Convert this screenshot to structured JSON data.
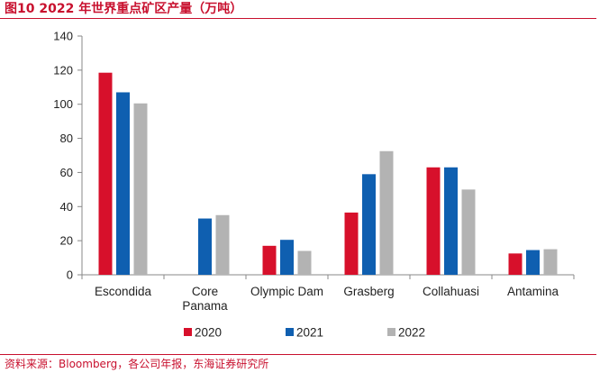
{
  "header": {
    "title": "图10  2022 年世界重点矿区产量（万吨）"
  },
  "footer": {
    "source": "资料来源：Bloomberg，各公司年报，东海证券研究所"
  },
  "colors": {
    "accent": "#c8102e",
    "s2020": "#d7102b",
    "s2021": "#0f5fb0",
    "s2022": "#b3b3b3"
  },
  "chart_data": {
    "type": "bar",
    "title": "2022 年世界重点矿区产量（万吨）",
    "xlabel": "",
    "ylabel": "",
    "ylim": [
      0,
      140
    ],
    "yticks": [
      0,
      20,
      40,
      60,
      80,
      100,
      120,
      140
    ],
    "categories": [
      [
        "Escondida"
      ],
      [
        "Core",
        "Panama"
      ],
      [
        "Olympic Dam"
      ],
      [
        "Grasberg"
      ],
      [
        "Collahuasi"
      ],
      [
        "Antamina"
      ]
    ],
    "series": [
      {
        "name": "2020",
        "color": "#d7102b",
        "values": [
          118.5,
          0,
          17,
          36.5,
          63,
          12.5
        ]
      },
      {
        "name": "2021",
        "color": "#0f5fb0",
        "values": [
          107,
          33,
          20.5,
          59,
          63,
          14.5
        ]
      },
      {
        "name": "2022",
        "color": "#b3b3b3",
        "values": [
          100.5,
          35,
          14,
          72.5,
          50,
          15
        ]
      }
    ],
    "legend": "bottom-center",
    "grid": false
  }
}
